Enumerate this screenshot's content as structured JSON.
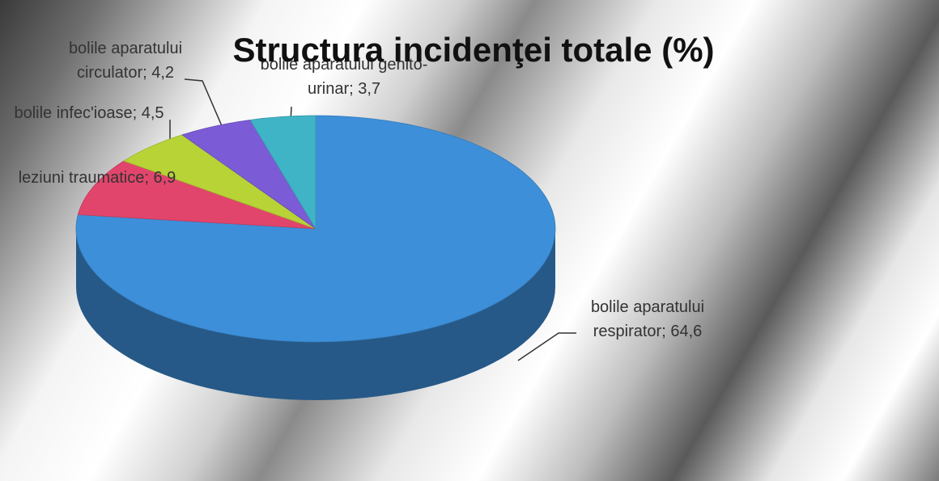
{
  "chart_data": {
    "type": "pie",
    "title": "Structura incidenţei totale (%)",
    "values": [
      64.6,
      6.9,
      4.5,
      4.2,
      3.7
    ],
    "value_labels": [
      "bolile aparatului respirator; 64,6",
      "leziuni traumatice; 6,9",
      "bolile infec'ioase; 4,5",
      "bolile aparatului circulator; 4,2",
      "bolile aparatului genito-urinar; 3,7"
    ],
    "colors": [
      "#3d8fd9",
      "#e2456c",
      "#b7d336",
      "#7c5bd6",
      "#3fb4c6"
    ]
  }
}
